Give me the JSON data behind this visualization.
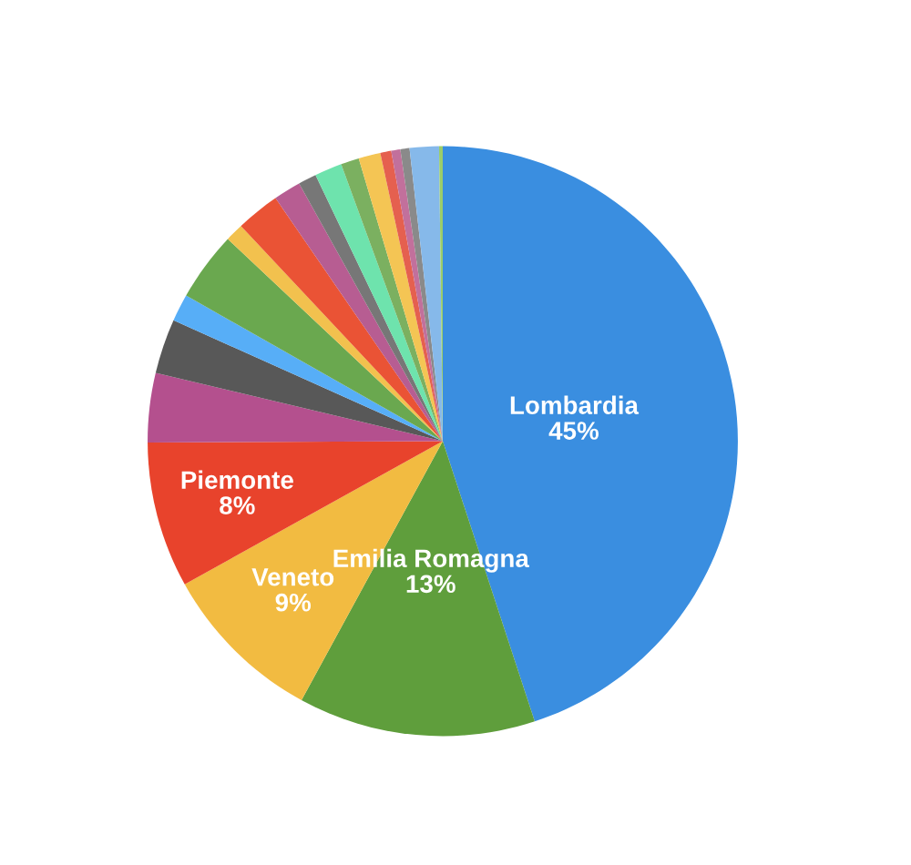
{
  "chart_data": {
    "type": "pie",
    "categories": [
      "Lombardia",
      "Emilia Romagna",
      "Veneto",
      "Piemonte",
      null,
      null,
      null,
      null,
      null,
      null,
      null,
      null,
      null,
      null,
      null,
      null,
      null,
      null,
      null,
      null
    ],
    "values": [
      45,
      13,
      9,
      8,
      3.8,
      3,
      1.5,
      3.8,
      1,
      2.4,
      1.5,
      1,
      1.5,
      1,
      1.2,
      0.6,
      0.5,
      0.5,
      1.6,
      0.2
    ],
    "value_labels": [
      "45%",
      "13%",
      "9%",
      "8%",
      null,
      null,
      null,
      null,
      null,
      null,
      null,
      null,
      null,
      null,
      null,
      null,
      null,
      null,
      null,
      null
    ],
    "colors": [
      "#3a8ee0",
      "#5f9e3c",
      "#f2bb41",
      "#e8432c",
      "#b4508e",
      "#585858",
      "#57aef7",
      "#6aa84f",
      "#f2c14e",
      "#ea5335",
      "#b75d92",
      "#777777",
      "#6ee3ad",
      "#7bb060",
      "#f4c554",
      "#e5604f",
      "#c2709c",
      "#8a8a8a",
      "#86b9ea",
      "#9acd6a"
    ]
  }
}
